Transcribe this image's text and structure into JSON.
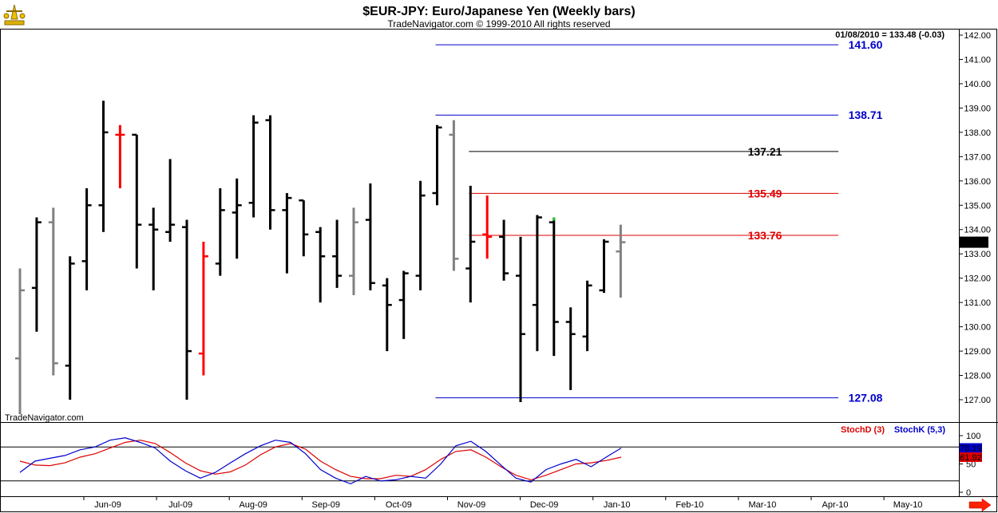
{
  "header": {
    "title": "$EUR-JPY:  Euro/Japanese Yen  (Weekly bars)",
    "copyright": "TradeNavigator.com © 1999-2010 All rights reserved",
    "last_value_info": "01/08/2010 = 133.48 (-0.03)",
    "watermark": "TradeNavigator.com"
  },
  "colors": {
    "up_bar": "#000000",
    "neutral_bar": "#808080",
    "highlight_bar": "#ff0000",
    "level_blue": "#0000cc",
    "level_red": "#dd0000",
    "level_black": "#000000",
    "stoch_d": "#dd0000",
    "stoch_k": "#0000cc",
    "nav_arrow": "#ff2200"
  },
  "chart_data": [
    {
      "type": "ohlc",
      "title": "$EUR-JPY:  Euro/Japanese Yen  (Weekly bars)",
      "yrange": [
        126.5,
        142.3
      ],
      "yticks": [
        127,
        128,
        129,
        130,
        131,
        132,
        133,
        134,
        135,
        136,
        137,
        138,
        139,
        140,
        141,
        142
      ],
      "x_labels": [
        "Jun-09",
        "Jul-09",
        "Aug-09",
        "Sep-09",
        "Oct-09",
        "Nov-09",
        "Dec-09",
        "Jan-10",
        "Feb-10",
        "Mar-10",
        "Apr-10",
        "May-10"
      ],
      "last_price_label": "133.48",
      "bars": [
        {
          "o": 128.7,
          "h": 132.4,
          "l": 126.4,
          "c": 131.5,
          "color": "gray"
        },
        {
          "o": 131.6,
          "h": 134.5,
          "l": 129.8,
          "c": 134.3,
          "color": "black"
        },
        {
          "o": 134.3,
          "h": 134.9,
          "l": 128.0,
          "c": 128.5,
          "color": "gray"
        },
        {
          "o": 128.4,
          "h": 132.9,
          "l": 127.0,
          "c": 132.6,
          "color": "black"
        },
        {
          "o": 132.7,
          "h": 135.7,
          "l": 131.5,
          "c": 135.0,
          "color": "black"
        },
        {
          "o": 135.0,
          "h": 139.3,
          "l": 133.9,
          "c": 138.0,
          "color": "black"
        },
        {
          "o": 137.9,
          "h": 138.3,
          "l": 135.7,
          "c": 137.9,
          "color": "red"
        },
        {
          "o": 137.9,
          "h": 137.9,
          "l": 132.4,
          "c": 134.2,
          "color": "black"
        },
        {
          "o": 134.2,
          "h": 134.9,
          "l": 131.5,
          "c": 134.0,
          "color": "black"
        },
        {
          "o": 133.9,
          "h": 136.9,
          "l": 133.5,
          "c": 134.2,
          "color": "black"
        },
        {
          "o": 134.1,
          "h": 134.4,
          "l": 127.0,
          "c": 129.0,
          "color": "black"
        },
        {
          "o": 128.9,
          "h": 133.5,
          "l": 128.0,
          "c": 132.9,
          "color": "red"
        },
        {
          "o": 132.6,
          "h": 135.7,
          "l": 132.1,
          "c": 134.8,
          "color": "black"
        },
        {
          "o": 134.7,
          "h": 136.1,
          "l": 132.8,
          "c": 135.0,
          "color": "black"
        },
        {
          "o": 135.1,
          "h": 138.7,
          "l": 134.5,
          "c": 138.4,
          "color": "black"
        },
        {
          "o": 138.5,
          "h": 138.7,
          "l": 134.0,
          "c": 134.8,
          "color": "black"
        },
        {
          "o": 134.8,
          "h": 135.5,
          "l": 132.2,
          "c": 135.3,
          "color": "black"
        },
        {
          "o": 135.2,
          "h": 135.2,
          "l": 132.9,
          "c": 133.8,
          "color": "black"
        },
        {
          "o": 133.9,
          "h": 134.1,
          "l": 131.0,
          "c": 132.9,
          "color": "black"
        },
        {
          "o": 132.9,
          "h": 134.4,
          "l": 131.6,
          "c": 132.1,
          "color": "black"
        },
        {
          "o": 132.1,
          "h": 134.9,
          "l": 131.3,
          "c": 134.3,
          "color": "gray"
        },
        {
          "o": 134.4,
          "h": 135.9,
          "l": 131.5,
          "c": 131.8,
          "color": "black"
        },
        {
          "o": 131.7,
          "h": 132.0,
          "l": 129.0,
          "c": 130.9,
          "color": "black"
        },
        {
          "o": 131.1,
          "h": 132.3,
          "l": 129.5,
          "c": 132.2,
          "color": "black"
        },
        {
          "o": 132.1,
          "h": 136.0,
          "l": 131.5,
          "c": 135.4,
          "color": "black"
        },
        {
          "o": 135.5,
          "h": 138.3,
          "l": 135.0,
          "c": 138.2,
          "color": "black"
        },
        {
          "o": 137.9,
          "h": 138.5,
          "l": 132.3,
          "c": 132.8,
          "color": "gray"
        },
        {
          "o": 132.4,
          "h": 135.8,
          "l": 131.0,
          "c": 133.5,
          "color": "black"
        },
        {
          "o": 133.8,
          "h": 135.4,
          "l": 132.8,
          "c": 133.7,
          "color": "red"
        },
        {
          "o": 133.7,
          "h": 134.4,
          "l": 131.9,
          "c": 132.2,
          "color": "black"
        },
        {
          "o": 132.1,
          "h": 133.7,
          "l": 126.9,
          "c": 129.7,
          "color": "black"
        },
        {
          "o": 130.9,
          "h": 134.6,
          "l": 129.0,
          "c": 134.5,
          "color": "black"
        },
        {
          "o": 134.3,
          "h": 134.5,
          "l": 128.8,
          "c": 130.2,
          "color": "black",
          "high_mark": "green"
        },
        {
          "o": 130.2,
          "h": 130.8,
          "l": 127.4,
          "c": 129.7,
          "color": "black"
        },
        {
          "o": 129.6,
          "h": 131.9,
          "l": 129.0,
          "c": 131.7,
          "color": "black"
        },
        {
          "o": 131.5,
          "h": 133.6,
          "l": 131.4,
          "c": 133.5,
          "color": "black"
        },
        {
          "o": 133.1,
          "h": 134.2,
          "l": 131.2,
          "c": 133.48,
          "color": "gray"
        }
      ],
      "levels": [
        {
          "value": 141.6,
          "label": "141.60",
          "color": "blue",
          "start_bar": 25
        },
        {
          "value": 138.71,
          "label": "138.71",
          "color": "blue",
          "start_bar": 25
        },
        {
          "value": 137.21,
          "label": "137.21",
          "color": "black",
          "start_bar": 27
        },
        {
          "value": 135.49,
          "label": "135.49",
          "color": "red",
          "start_bar": 27
        },
        {
          "value": 133.76,
          "label": "133.76",
          "color": "red",
          "start_bar": 27
        },
        {
          "value": 127.08,
          "label": "127.08",
          "color": "blue",
          "start_bar": 25
        }
      ]
    },
    {
      "type": "line",
      "title": "",
      "yrange": [
        0,
        100
      ],
      "yticks": [
        0,
        50,
        100
      ],
      "hlines": [
        20,
        80
      ],
      "legend": [
        "StochD (3)",
        "StochK (5,3)"
      ],
      "last_values": {
        "d": "61.92",
        "k": "78.19"
      },
      "series": [
        {
          "name": "StochD (3)",
          "color": "red",
          "values": [
            55,
            48,
            47,
            52,
            62,
            68,
            78,
            88,
            92,
            86,
            70,
            52,
            38,
            32,
            36,
            48,
            66,
            80,
            86,
            76,
            55,
            40,
            28,
            24,
            24,
            30,
            28,
            40,
            58,
            72,
            75,
            62,
            45,
            30,
            22,
            30,
            40,
            50,
            52,
            56,
            62
          ]
        },
        {
          "name": "StochK (5,3)",
          "color": "blue",
          "values": [
            35,
            55,
            60,
            65,
            75,
            80,
            92,
            96,
            88,
            78,
            55,
            38,
            25,
            35,
            52,
            68,
            82,
            92,
            88,
            68,
            40,
            25,
            15,
            28,
            20,
            22,
            28,
            25,
            50,
            82,
            90,
            72,
            48,
            25,
            18,
            40,
            50,
            58,
            45,
            62,
            78
          ]
        }
      ]
    }
  ]
}
